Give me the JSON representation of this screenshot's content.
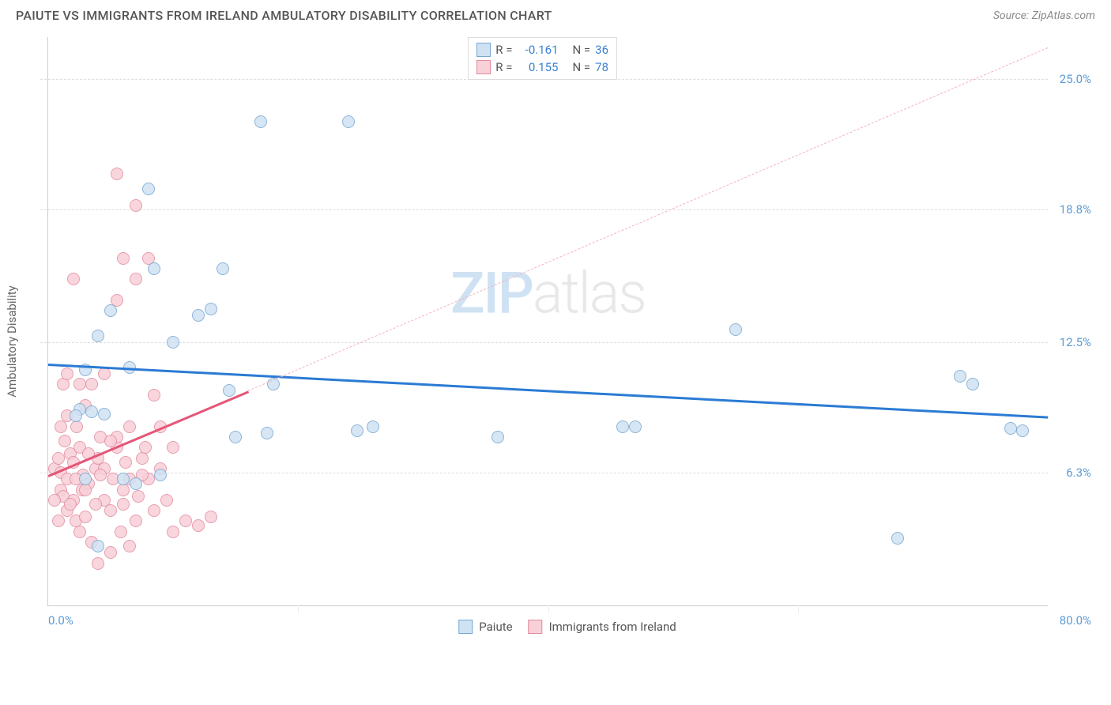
{
  "title": "PAIUTE VS IMMIGRANTS FROM IRELAND AMBULATORY DISABILITY CORRELATION CHART",
  "source": "Source: ZipAtlas.com",
  "y_axis_label": "Ambulatory Disability",
  "watermark": {
    "part1": "ZIP",
    "part2": "atlas"
  },
  "chart": {
    "type": "scatter",
    "xlim": [
      0,
      80
    ],
    "ylim": [
      0,
      27
    ],
    "x_ticks": [
      {
        "pos": 0,
        "label": "0.0%",
        "align": "left"
      },
      {
        "pos": 80,
        "label": "80.0%",
        "align": "right"
      }
    ],
    "x_tick_marks": [
      20,
      40,
      60
    ],
    "y_ticks": [
      {
        "pos": 6.3,
        "label": "6.3%"
      },
      {
        "pos": 12.5,
        "label": "12.5%"
      },
      {
        "pos": 18.8,
        "label": "18.8%"
      },
      {
        "pos": 25.0,
        "label": "25.0%"
      }
    ],
    "y_tick_color": "#5b9bd5",
    "x_tick_color": "#5b9bd5",
    "grid_color": "#dddddd",
    "background_color": "#ffffff",
    "series": [
      {
        "name": "Paiute",
        "color_fill": "#cfe2f3",
        "color_stroke": "#7ba7d1",
        "R": -0.161,
        "N": 36,
        "trend": {
          "x1": 0,
          "y1": 11.5,
          "x2": 80,
          "y2": 9.0,
          "color": "#2b7bd4",
          "width": 2.5
        },
        "dashed": null,
        "points": [
          [
            2.5,
            9.3
          ],
          [
            3,
            11.2
          ],
          [
            3.5,
            9.2
          ],
          [
            4,
            12.8
          ],
          [
            5,
            14.0
          ],
          [
            6.5,
            11.3
          ],
          [
            7,
            5.8
          ],
          [
            8,
            19.8
          ],
          [
            8.5,
            16.0
          ],
          [
            10,
            12.5
          ],
          [
            12,
            13.8
          ],
          [
            14,
            16.0
          ],
          [
            14.5,
            10.2
          ],
          [
            15,
            8.0
          ],
          [
            17,
            23.0
          ],
          [
            17.5,
            8.2
          ],
          [
            18,
            10.5
          ],
          [
            24,
            23.0
          ],
          [
            24.7,
            8.3
          ],
          [
            26,
            8.5
          ],
          [
            36,
            8.0
          ],
          [
            46,
            8.5
          ],
          [
            47,
            8.5
          ],
          [
            55,
            13.1
          ],
          [
            68,
            3.2
          ],
          [
            73,
            10.9
          ],
          [
            74,
            10.5
          ],
          [
            77,
            8.4
          ],
          [
            78,
            8.3
          ],
          [
            3,
            6.0
          ],
          [
            4,
            2.8
          ],
          [
            6,
            6.0
          ],
          [
            9,
            6.2
          ],
          [
            2.2,
            9.0
          ],
          [
            4.5,
            9.1
          ],
          [
            13,
            14.1
          ]
        ]
      },
      {
        "name": "Immigrants from Ireland",
        "color_fill": "#f8d0d8",
        "color_stroke": "#e28ca0",
        "R": 0.155,
        "N": 78,
        "trend": {
          "x1": 0,
          "y1": 6.2,
          "x2": 16,
          "y2": 10.2,
          "color": "#e55577",
          "width": 2.5
        },
        "dashed": {
          "x1": 16,
          "y1": 10.2,
          "x2": 80,
          "y2": 26.5,
          "color": "#f2b3c0"
        },
        "points": [
          [
            0.5,
            6.5
          ],
          [
            0.8,
            7.0
          ],
          [
            1,
            5.5
          ],
          [
            1,
            6.3
          ],
          [
            1.2,
            5.2
          ],
          [
            1.3,
            7.8
          ],
          [
            1.5,
            6.0
          ],
          [
            1.5,
            4.5
          ],
          [
            1.8,
            7.2
          ],
          [
            2,
            5.0
          ],
          [
            2,
            6.8
          ],
          [
            2.2,
            4.0
          ],
          [
            2.3,
            8.5
          ],
          [
            2.5,
            3.5
          ],
          [
            2.5,
            7.5
          ],
          [
            2.7,
            5.5
          ],
          [
            2.8,
            6.2
          ],
          [
            3,
            4.2
          ],
          [
            3,
            9.5
          ],
          [
            3.2,
            5.8
          ],
          [
            3.5,
            10.5
          ],
          [
            3.5,
            3.0
          ],
          [
            3.8,
            6.5
          ],
          [
            4,
            7.0
          ],
          [
            4,
            2.0
          ],
          [
            4.2,
            8.0
          ],
          [
            4.5,
            5.0
          ],
          [
            4.5,
            11.0
          ],
          [
            5,
            4.5
          ],
          [
            5,
            2.5
          ],
          [
            5.2,
            6.0
          ],
          [
            5.5,
            7.5
          ],
          [
            5.5,
            14.5
          ],
          [
            5.5,
            20.5
          ],
          [
            5.8,
            3.5
          ],
          [
            6,
            5.5
          ],
          [
            6,
            16.5
          ],
          [
            6.2,
            6.8
          ],
          [
            6.5,
            8.5
          ],
          [
            6.5,
            2.8
          ],
          [
            7,
            4.0
          ],
          [
            7,
            19.0
          ],
          [
            7,
            15.5
          ],
          [
            7.2,
            5.2
          ],
          [
            7.5,
            7.0
          ],
          [
            8,
            6.0
          ],
          [
            8,
            16.5
          ],
          [
            8.5,
            4.5
          ],
          [
            8.5,
            10.0
          ],
          [
            9,
            6.5
          ],
          [
            9.5,
            5.0
          ],
          [
            10,
            7.5
          ],
          [
            10,
            3.5
          ],
          [
            11,
            4.0
          ],
          [
            12,
            3.8
          ],
          [
            13,
            4.2
          ],
          [
            1.2,
            10.5
          ],
          [
            1.5,
            11.0
          ],
          [
            2,
            15.5
          ],
          [
            0.8,
            4.0
          ],
          [
            0.5,
            5.0
          ],
          [
            1.8,
            4.8
          ],
          [
            2.5,
            10.5
          ],
          [
            3.2,
            7.2
          ],
          [
            4.5,
            6.5
          ],
          [
            5.5,
            8.0
          ],
          [
            6.5,
            6.0
          ],
          [
            7.8,
            7.5
          ],
          [
            9,
            8.5
          ],
          [
            1,
            8.5
          ],
          [
            1.5,
            9.0
          ],
          [
            2.2,
            6.0
          ],
          [
            3,
            5.5
          ],
          [
            3.8,
            4.8
          ],
          [
            4.2,
            6.2
          ],
          [
            5,
            7.8
          ],
          [
            6,
            4.8
          ],
          [
            7.5,
            6.2
          ]
        ]
      }
    ]
  },
  "legend_stats": {
    "r_label": "R =",
    "n_label": "N ="
  },
  "bottom_legend": [
    {
      "swatch_fill": "#cfe2f3",
      "swatch_stroke": "#7ba7d1",
      "label": "Paiute"
    },
    {
      "swatch_fill": "#f8d0d8",
      "swatch_stroke": "#e28ca0",
      "label": "Immigrants from Ireland"
    }
  ]
}
